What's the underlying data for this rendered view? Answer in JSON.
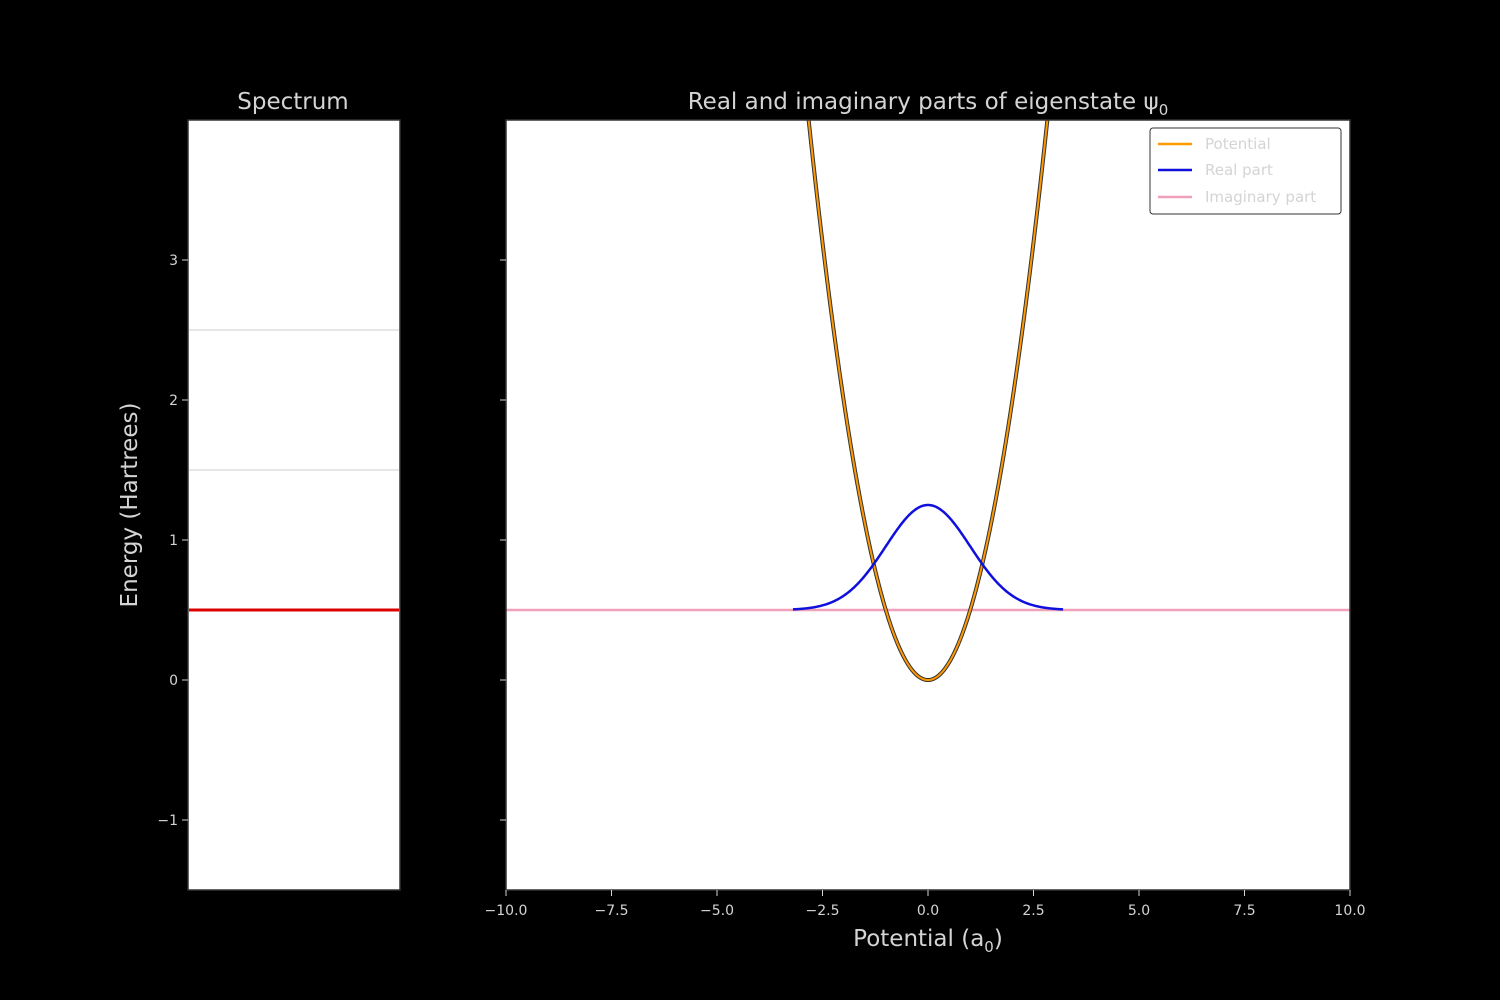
{
  "colors": {
    "background": "#000000",
    "axes_face": "#ffffff",
    "frame": "#333333",
    "text": "#d4d4d4",
    "potential": "#ff9900",
    "real_part": "#1010dd",
    "imaginary_part": "#f0a0b8",
    "selected_level": "#dd0000",
    "other_levels": "#dddddd",
    "baseline": "#aa3333"
  },
  "chart_data": [
    {
      "type": "line",
      "title": "Spectrum",
      "xlabel": "",
      "ylabel": "Energy (Hartrees)",
      "ylim": [
        -1.5,
        4.0
      ],
      "yticks": [
        -1,
        0,
        1,
        2,
        3
      ],
      "ytick_labels": [
        "−1",
        "0",
        "1",
        "2",
        "3"
      ],
      "energy_levels": [
        0.5,
        1.5,
        2.5
      ],
      "selected_level": 0.5,
      "grid": false
    },
    {
      "type": "line",
      "title_text": "Real and imaginary parts of eigenstate ψ",
      "title_subscript": "0",
      "xlabel_text": "Potential (a",
      "xlabel_subscript": "0",
      "xlabel_suffix": ")",
      "xlim": [
        -10,
        10
      ],
      "ylim": [
        -1.5,
        4.0
      ],
      "xticks": [
        -10,
        -7.5,
        -5,
        -2.5,
        0,
        2.5,
        5,
        7.5,
        10
      ],
      "xtick_labels": [
        "−10.0",
        "−7.5",
        "−5.0",
        "−2.5",
        "0.0",
        "2.5",
        "5.0",
        "7.5",
        "10.0"
      ],
      "grid": false,
      "legend_position": "top-right",
      "series": [
        {
          "name": "Potential",
          "formula": "V(x) = 0.5 x^2",
          "x_range": [
            -10,
            10
          ]
        },
        {
          "name": "Real part",
          "formula": "E0 + 0.75 exp(-x^2/2)",
          "x_range": [
            -3.2,
            3.2
          ]
        },
        {
          "name": "Imaginary part",
          "formula": "E0",
          "x_range": [
            -10,
            10
          ]
        }
      ],
      "energy": 0.5
    }
  ]
}
